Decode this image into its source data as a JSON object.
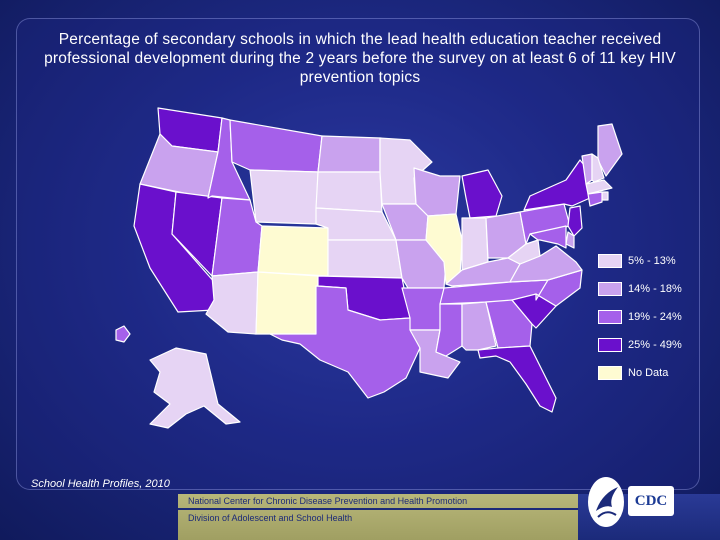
{
  "title": "Percentage of secondary schools in which the lead health education teacher received professional development during the 2 years before the survey on at least 6 of 11 key HIV prevention topics",
  "colors": {
    "c1": "#e6d4f4",
    "c2": "#c9a2ee",
    "c3": "#a560ea",
    "c4": "#6a10cc",
    "nodata": "#fefbd2"
  },
  "legend": [
    {
      "label": "5% - 13%",
      "class": "c1"
    },
    {
      "label": "14% - 18%",
      "class": "c2"
    },
    {
      "label": "19% - 24%",
      "class": "c3"
    },
    {
      "label": "25% - 49%",
      "class": "c4"
    },
    {
      "label": "No Data",
      "class": "nodata"
    }
  ],
  "states": [
    {
      "id": "WA",
      "class": "c4"
    },
    {
      "id": "OR",
      "class": "c2"
    },
    {
      "id": "CA",
      "class": "c4"
    },
    {
      "id": "NV",
      "class": "c4"
    },
    {
      "id": "ID",
      "class": "c3"
    },
    {
      "id": "MT",
      "class": "c3"
    },
    {
      "id": "WY",
      "class": "c1"
    },
    {
      "id": "UT",
      "class": "c3"
    },
    {
      "id": "AZ",
      "class": "c1"
    },
    {
      "id": "CO",
      "class": "nodata"
    },
    {
      "id": "NM",
      "class": "nodata"
    },
    {
      "id": "ND",
      "class": "c2"
    },
    {
      "id": "SD",
      "class": "c1"
    },
    {
      "id": "NE",
      "class": "c1"
    },
    {
      "id": "KS",
      "class": "c1"
    },
    {
      "id": "OK",
      "class": "c4"
    },
    {
      "id": "TX",
      "class": "c3"
    },
    {
      "id": "MN",
      "class": "c1"
    },
    {
      "id": "IA",
      "class": "c2"
    },
    {
      "id": "MO",
      "class": "c2"
    },
    {
      "id": "AR",
      "class": "c3"
    },
    {
      "id": "LA",
      "class": "c2"
    },
    {
      "id": "WI",
      "class": "c2"
    },
    {
      "id": "IL",
      "class": "nodata"
    },
    {
      "id": "MI",
      "class": "c4"
    },
    {
      "id": "IN",
      "class": "c1"
    },
    {
      "id": "OH",
      "class": "c2"
    },
    {
      "id": "KY",
      "class": "c2"
    },
    {
      "id": "TN",
      "class": "c3"
    },
    {
      "id": "MS",
      "class": "c3"
    },
    {
      "id": "AL",
      "class": "c2"
    },
    {
      "id": "GA",
      "class": "c3"
    },
    {
      "id": "FL",
      "class": "c4"
    },
    {
      "id": "SC",
      "class": "c4"
    },
    {
      "id": "NC",
      "class": "c3"
    },
    {
      "id": "VA",
      "class": "c2"
    },
    {
      "id": "WV",
      "class": "c1"
    },
    {
      "id": "PA",
      "class": "c3"
    },
    {
      "id": "NY",
      "class": "c4"
    },
    {
      "id": "ME",
      "class": "c2"
    },
    {
      "id": "VT",
      "class": "c2"
    },
    {
      "id": "NH",
      "class": "c1"
    },
    {
      "id": "MA",
      "class": "c1"
    },
    {
      "id": "CT",
      "class": "c3"
    },
    {
      "id": "RI",
      "class": "c1"
    },
    {
      "id": "NJ",
      "class": "c4"
    },
    {
      "id": "DE",
      "class": "c2"
    },
    {
      "id": "MD",
      "class": "c3"
    },
    {
      "id": "AK",
      "class": "c1"
    },
    {
      "id": "HI",
      "class": "c3"
    }
  ],
  "source": "School Health Profiles, 2010",
  "footer": {
    "line1": "National Center for Chronic Disease Prevention and Health Promotion",
    "line2": "Division of Adolescent and School Health"
  },
  "logos": {
    "hhs": "hhs-eagle-logo",
    "cdc": "CDC"
  }
}
